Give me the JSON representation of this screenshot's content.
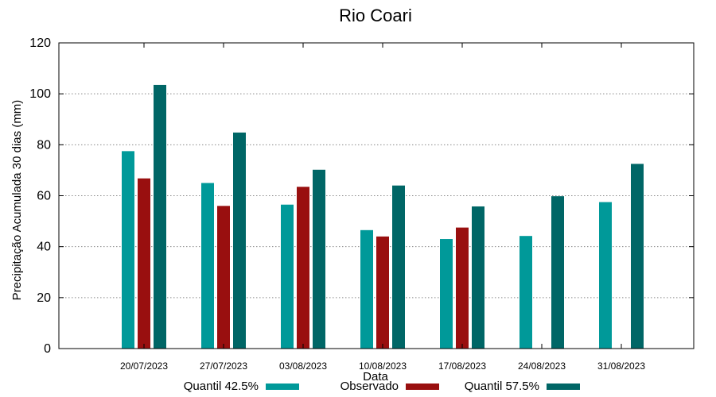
{
  "chart_data": {
    "type": "bar",
    "title": "Rio Coari",
    "xlabel": "Data",
    "ylabel": "Precipitação Acumulada 30 dias (mm)",
    "ylim": [
      0,
      120
    ],
    "yticks": [
      0,
      20,
      40,
      60,
      80,
      100,
      120
    ],
    "grid": true,
    "legend_position": "bottom",
    "categories": [
      "20/07/2023",
      "27/07/2023",
      "03/08/2023",
      "10/08/2023",
      "17/08/2023",
      "24/08/2023",
      "31/08/2023"
    ],
    "series": [
      {
        "name": "Quantil 42.5%",
        "color": "#009999",
        "values": [
          77.5,
          65,
          56.5,
          46.5,
          43,
          44.2,
          57.5
        ]
      },
      {
        "name": "Observado",
        "color": "#990f0f",
        "values": [
          66.8,
          56,
          63.5,
          44,
          47.5,
          null,
          null
        ]
      },
      {
        "name": "Quantil 57.5%",
        "color": "#006666",
        "values": [
          103.5,
          84.8,
          70.2,
          64,
          55.8,
          59.8,
          72.5
        ]
      }
    ]
  }
}
